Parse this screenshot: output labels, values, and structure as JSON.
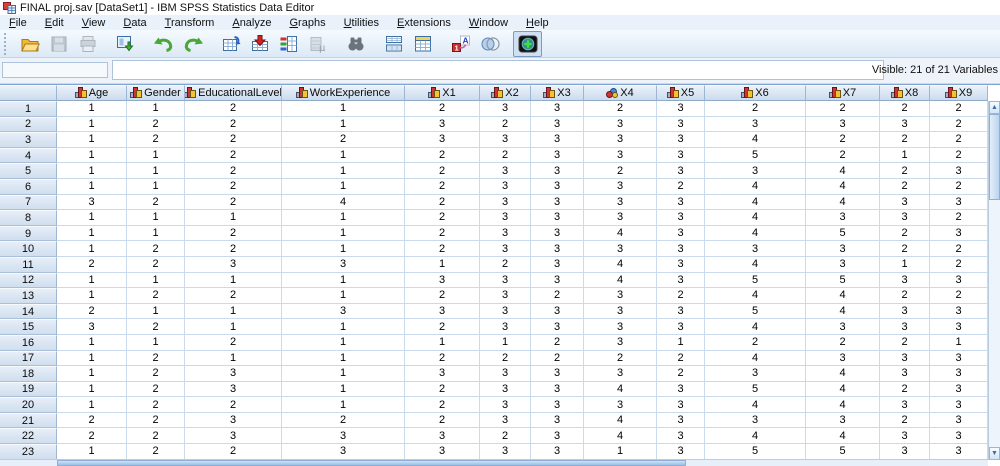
{
  "window": {
    "title": "FINAL proj.sav [DataSet1] - IBM SPSS Statistics Data Editor",
    "app_icon": "spss-data-grid-icon"
  },
  "menubar": {
    "items": [
      "File",
      "Edit",
      "View",
      "Data",
      "Transform",
      "Analyze",
      "Graphs",
      "Utilities",
      "Extensions",
      "Window",
      "Help"
    ]
  },
  "toolbar": {
    "buttons": [
      {
        "name": "open-data-document",
        "enabled": true
      },
      {
        "name": "save-document",
        "enabled": false
      },
      {
        "name": "print",
        "enabled": false
      },
      {
        "name": "recall-recently-used-dialogs",
        "enabled": true
      },
      {
        "name": "undo",
        "enabled": true
      },
      {
        "name": "redo",
        "enabled": true
      },
      {
        "name": "go-to-case",
        "enabled": true
      },
      {
        "name": "go-to-variable",
        "enabled": true
      },
      {
        "name": "variables",
        "enabled": true
      },
      {
        "name": "run-descriptive-statistics",
        "enabled": false
      },
      {
        "name": "find",
        "enabled": true
      },
      {
        "name": "split-file",
        "enabled": true
      },
      {
        "name": "select-cases",
        "enabled": true
      },
      {
        "name": "value-labels",
        "enabled": true
      },
      {
        "name": "use-variable-sets",
        "enabled": true
      },
      {
        "name": "show-all-variables",
        "enabled": true,
        "pressed": true
      }
    ]
  },
  "refbar": {
    "cell_reference": "",
    "cell_editor_value": "",
    "visible_label": "Visible: 21 of 21 Variables"
  },
  "grid": {
    "corner_label": "",
    "columns": [
      {
        "name": "Age",
        "measure": "ordinal"
      },
      {
        "name": "Gender",
        "measure": "ordinal"
      },
      {
        "name": "EducationalLevel",
        "measure": "ordinal"
      },
      {
        "name": "WorkExperience",
        "measure": "ordinal"
      },
      {
        "name": "X1",
        "measure": "ordinal"
      },
      {
        "name": "X2",
        "measure": "ordinal"
      },
      {
        "name": "X3",
        "measure": "ordinal"
      },
      {
        "name": "X4",
        "measure": "nominal"
      },
      {
        "name": "X5",
        "measure": "ordinal"
      },
      {
        "name": "X6",
        "measure": "ordinal"
      },
      {
        "name": "X7",
        "measure": "ordinal"
      },
      {
        "name": "X8",
        "measure": "ordinal"
      },
      {
        "name": "X9",
        "measure": "ordinal"
      }
    ],
    "rows": [
      [
        1,
        1,
        2,
        1,
        2,
        3,
        3,
        2,
        3,
        2,
        2,
        2,
        2
      ],
      [
        1,
        2,
        2,
        1,
        3,
        2,
        3,
        3,
        3,
        3,
        3,
        3,
        2
      ],
      [
        1,
        2,
        2,
        2,
        3,
        3,
        3,
        3,
        3,
        4,
        2,
        2,
        2
      ],
      [
        1,
        1,
        2,
        1,
        2,
        2,
        3,
        3,
        3,
        5,
        2,
        1,
        2
      ],
      [
        1,
        1,
        2,
        1,
        2,
        3,
        3,
        2,
        3,
        3,
        4,
        2,
        3
      ],
      [
        1,
        1,
        2,
        1,
        2,
        3,
        3,
        3,
        2,
        4,
        4,
        2,
        2
      ],
      [
        3,
        2,
        2,
        4,
        2,
        3,
        3,
        3,
        3,
        4,
        4,
        3,
        3
      ],
      [
        1,
        1,
        1,
        1,
        2,
        3,
        3,
        3,
        3,
        4,
        3,
        3,
        2
      ],
      [
        1,
        1,
        2,
        1,
        2,
        3,
        3,
        4,
        3,
        4,
        5,
        2,
        3
      ],
      [
        1,
        2,
        2,
        1,
        2,
        3,
        3,
        3,
        3,
        3,
        3,
        2,
        2
      ],
      [
        2,
        2,
        3,
        3,
        1,
        2,
        3,
        4,
        3,
        4,
        3,
        1,
        2
      ],
      [
        1,
        1,
        1,
        1,
        3,
        3,
        3,
        4,
        3,
        5,
        5,
        3,
        3
      ],
      [
        1,
        2,
        2,
        1,
        2,
        3,
        2,
        3,
        2,
        4,
        4,
        2,
        2
      ],
      [
        2,
        1,
        1,
        3,
        3,
        3,
        3,
        3,
        3,
        5,
        4,
        3,
        3
      ],
      [
        3,
        2,
        1,
        1,
        2,
        3,
        3,
        3,
        3,
        4,
        3,
        3,
        3
      ],
      [
        1,
        1,
        2,
        1,
        1,
        1,
        2,
        3,
        1,
        2,
        2,
        2,
        1
      ],
      [
        1,
        2,
        1,
        1,
        2,
        2,
        2,
        2,
        2,
        4,
        3,
        3,
        3
      ],
      [
        1,
        2,
        3,
        1,
        3,
        3,
        3,
        3,
        2,
        3,
        4,
        3,
        3
      ],
      [
        1,
        2,
        3,
        1,
        2,
        3,
        3,
        4,
        3,
        5,
        4,
        2,
        3
      ],
      [
        1,
        2,
        2,
        1,
        2,
        3,
        3,
        3,
        3,
        4,
        4,
        3,
        3
      ],
      [
        2,
        2,
        3,
        2,
        2,
        3,
        3,
        4,
        3,
        3,
        3,
        2,
        3
      ],
      [
        2,
        2,
        3,
        3,
        3,
        2,
        3,
        4,
        3,
        4,
        4,
        3,
        3
      ],
      [
        1,
        2,
        2,
        3,
        3,
        3,
        3,
        1,
        3,
        5,
        5,
        3,
        3
      ]
    ]
  }
}
